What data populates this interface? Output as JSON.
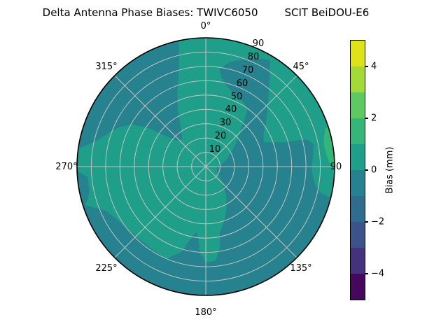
{
  "figure": {
    "title_left": "Delta Antenna Phase Biases: TWIVC6050",
    "title_right": "SCIT BeiDOU-E6"
  },
  "chart_data": {
    "type": "polar_contour",
    "title": "Delta Antenna Phase Biases: TWIVC6050      SCIT BeiDOU-E6",
    "theta_zero_location": "top",
    "theta_direction": "clockwise",
    "angular_tick_labels": [
      "0°",
      "45°",
      "90",
      "135°",
      "180°",
      "225°",
      "270°",
      "315°"
    ],
    "radial_tick_labels": [
      "10",
      "20",
      "30",
      "40",
      "50",
      "60",
      "70",
      "80",
      "90"
    ],
    "radial_range": [
      0,
      90
    ],
    "radial_label_angle_deg": 22.5,
    "grid": true,
    "colors": {
      "base_band": "#1f9e89",
      "negative_band": "#26828e",
      "positive_band_1_2": "#34b679",
      "grid": "#c2c2c2",
      "spine": "#000000"
    },
    "base_value_range_mm": [
      0,
      1
    ],
    "regions": [
      {
        "name": "negative-bias-main",
        "value_range_mm": [
          -1,
          0
        ],
        "color": "#26828e",
        "outline_az_r": [
          [
            8,
            69
          ],
          [
            13,
            75
          ],
          [
            20,
            80
          ],
          [
            26,
            84
          ],
          [
            31,
            87
          ],
          [
            34,
            80
          ],
          [
            38,
            72
          ],
          [
            43,
            64
          ],
          [
            49,
            57
          ],
          [
            55,
            51
          ],
          [
            61,
            46
          ],
          [
            67,
            44
          ],
          [
            70,
            50
          ],
          [
            73,
            58
          ],
          [
            74,
            66
          ],
          [
            75,
            73
          ],
          [
            78,
            77
          ],
          [
            85,
            75
          ],
          [
            92,
            74
          ],
          [
            99,
            77
          ],
          [
            103,
            83
          ],
          [
            104,
            90
          ],
          [
            "arc",
            104,
            253,
            90
          ],
          [
            246,
            76
          ],
          [
            236,
            71
          ],
          [
            224,
            69
          ],
          [
            212,
            69
          ],
          [
            203,
            70
          ],
          [
            196,
            62
          ],
          [
            191,
            50
          ],
          [
            188,
            46
          ],
          [
            186,
            50
          ],
          [
            184,
            60
          ],
          [
            180,
            67
          ],
          [
            174,
            66
          ],
          [
            170,
            57
          ],
          [
            168,
            47
          ],
          [
            162,
            41
          ],
          [
            154,
            33
          ],
          [
            145,
            25
          ],
          [
            134,
            16
          ],
          [
            121,
            10
          ],
          [
            108,
            8
          ],
          [
            95,
            8
          ],
          [
            83,
            11
          ],
          [
            72,
            15
          ],
          [
            62,
            20
          ],
          [
            53,
            26
          ],
          [
            46,
            33
          ],
          [
            40,
            41
          ],
          [
            36,
            50
          ],
          [
            30,
            52
          ],
          [
            22,
            54
          ],
          [
            15,
            58
          ],
          [
            10,
            63
          ]
        ]
      },
      {
        "name": "negative-bias-northwest-arm",
        "value_range_mm": [
          -1,
          0
        ],
        "color": "#26828e",
        "outline_az_r": [
          [
            "arc",
            278,
            348,
            90
          ],
          [
            345,
            72
          ],
          [
            340,
            58
          ],
          [
            334,
            45
          ],
          [
            327,
            32
          ],
          [
            319,
            25
          ],
          [
            312,
            27
          ],
          [
            307,
            36
          ],
          [
            304,
            48
          ],
          [
            300,
            59
          ],
          [
            294,
            67
          ],
          [
            288,
            73
          ],
          [
            283,
            79
          ],
          [
            280,
            85
          ]
        ]
      },
      {
        "name": "negative-bias-west-rim-patch",
        "value_range_mm": [
          -1,
          0
        ],
        "color": "#26828e",
        "outline_az_r": [
          [
            "arc",
            252,
            268,
            90
          ],
          [
            265,
            83
          ],
          [
            258,
            83
          ],
          [
            254,
            86
          ]
        ]
      },
      {
        "name": "positive-bias-east-rim-sliver",
        "value_range_mm": [
          1,
          2
        ],
        "color": "#34b679",
        "outline_az_r": [
          [
            72,
            88
          ],
          [
            76,
            85
          ],
          [
            80,
            84
          ],
          [
            85,
            85
          ],
          [
            89,
            87
          ],
          [
            "arc",
            89,
            72,
            89.7
          ]
        ]
      }
    ],
    "colorbar": {
      "label": "Bias (mm)",
      "vmin": -5,
      "vmax": 5,
      "tick_values": [
        4,
        2,
        0,
        -2,
        -4
      ],
      "tick_labels": [
        "4",
        "2",
        "0",
        "−2",
        "−4"
      ],
      "band_colors_top_to_bottom": [
        "#dde318",
        "#a2da37",
        "#5ec962",
        "#34b679",
        "#1f9e89",
        "#26828e",
        "#2f6c8e",
        "#3b528b",
        "#45327e",
        "#46085c"
      ]
    }
  }
}
